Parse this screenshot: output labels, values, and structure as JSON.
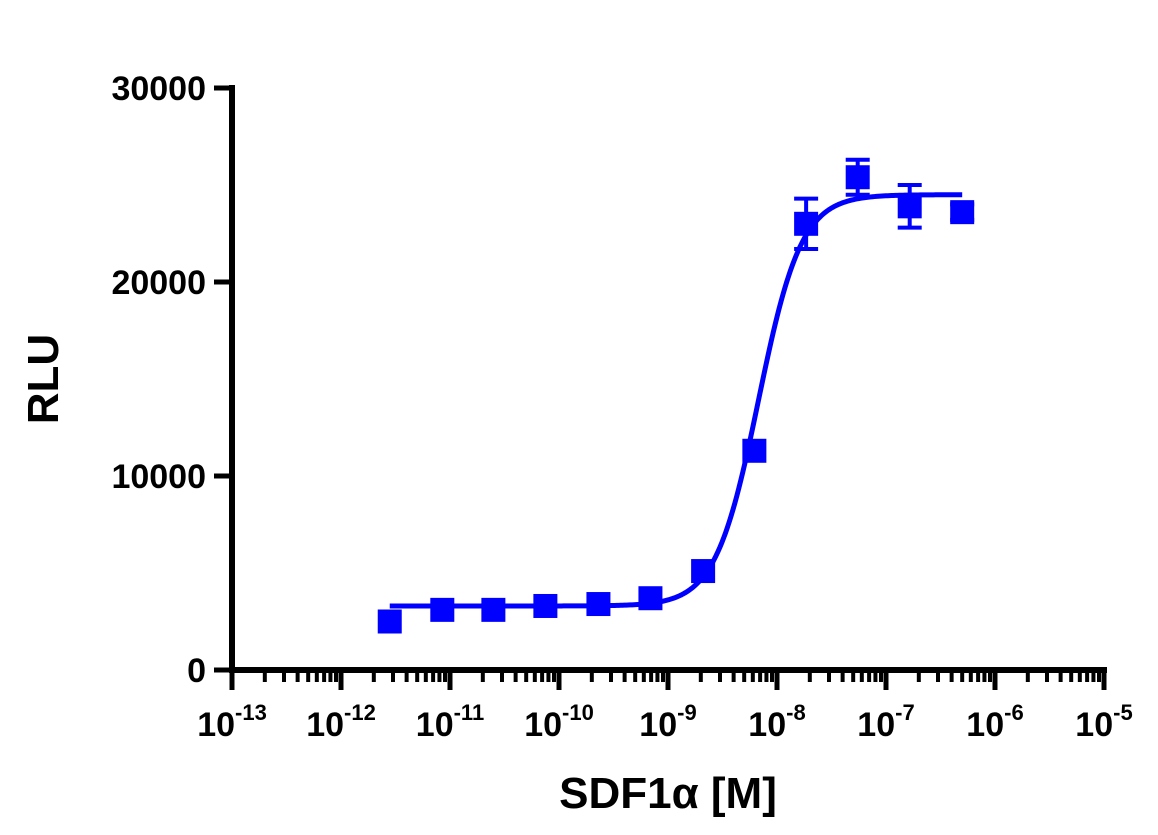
{
  "chart_data": {
    "type": "scatter",
    "xscale": "log",
    "xlim": [
      1e-13,
      1e-05
    ],
    "ylim": [
      0,
      30000
    ],
    "xlabel": "SDF1α [M]",
    "ylabel": "RLU",
    "color": "#0000ff",
    "yticks": [
      "0",
      "10000",
      "20000",
      "30000"
    ],
    "xticks": [
      {
        "base": "10",
        "exp": "-13"
      },
      {
        "base": "10",
        "exp": "-12"
      },
      {
        "base": "10",
        "exp": "-11"
      },
      {
        "base": "10",
        "exp": "-10"
      },
      {
        "base": "10",
        "exp": "-9"
      },
      {
        "base": "10",
        "exp": "-8"
      },
      {
        "base": "10",
        "exp": "-7"
      },
      {
        "base": "10",
        "exp": "-6"
      },
      {
        "base": "10",
        "exp": "-5"
      }
    ],
    "series": [
      {
        "x": [
          2.8e-12,
          8.5e-12,
          2.5e-11,
          7.5e-11,
          2.3e-10,
          6.9e-10,
          2.1e-09,
          6.2e-09,
          1.85e-08,
          5.5e-08,
          1.65e-07,
          5e-07
        ],
        "y": [
          2500,
          3100,
          3100,
          3300,
          3400,
          3700,
          5100,
          11300,
          23000,
          25400,
          23900,
          23600
        ],
        "yerr": [
          0,
          0,
          0,
          0,
          0,
          0,
          0,
          0,
          1300,
          900,
          1100,
          400
        ]
      }
    ],
    "fit": {
      "bottom": 3300,
      "top": 24500,
      "logEC50": -8.17,
      "hill": 2.2,
      "xrange": [
        2.8e-12,
        5e-07
      ]
    }
  }
}
